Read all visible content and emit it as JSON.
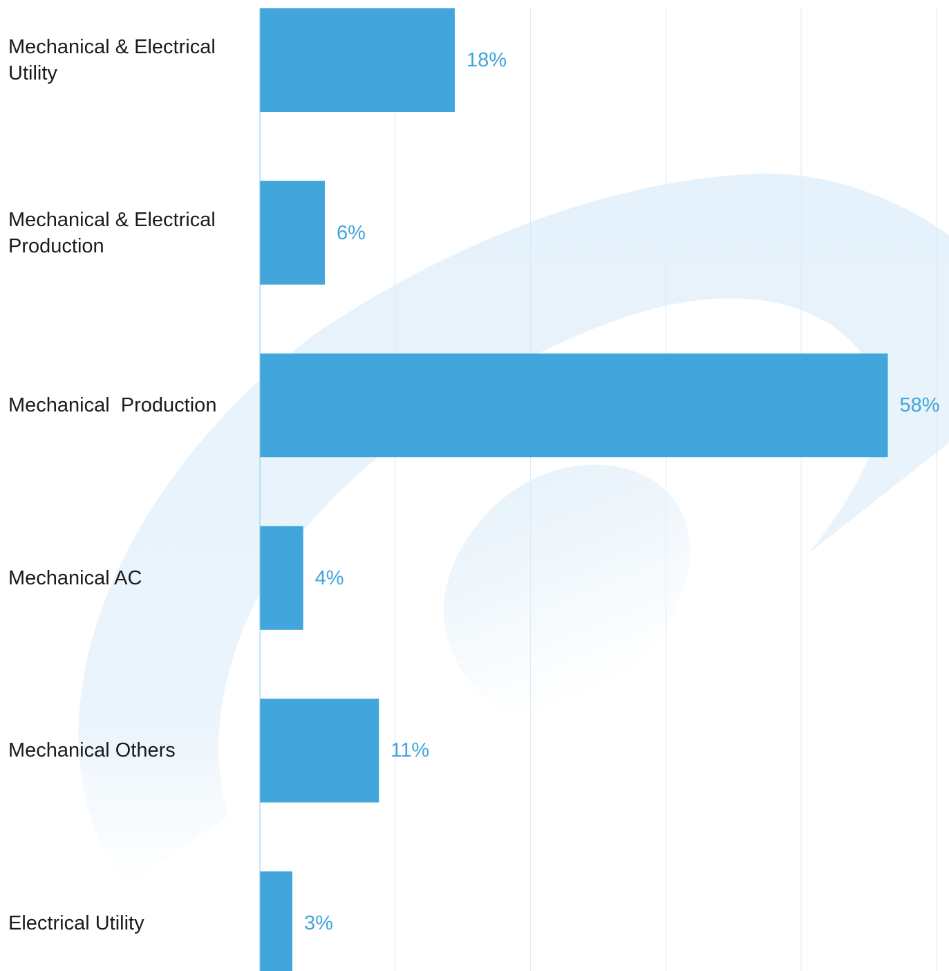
{
  "colors": {
    "bar": "#42a5dc",
    "value_label": "#42a5dc",
    "category_label": "#1b1b1b",
    "gridline": "#d9ebf7",
    "axis": "#8cc8ea",
    "background_swirl": "#e6f2fb"
  },
  "chart_data": {
    "type": "bar",
    "orientation": "horizontal",
    "title": "",
    "xlabel": "",
    "ylabel": "",
    "categories": [
      "Mechanical & Electrical Utility",
      "Mechanical & Electrical Production",
      "Mechanical  Production",
      "Mechanical AC",
      "Mechanical Others",
      "Electrical Utility"
    ],
    "values": [
      18,
      6,
      58,
      4,
      11,
      3
    ],
    "value_labels": [
      "18%",
      "6%",
      "58%",
      "4%",
      "11%",
      "3%"
    ],
    "xlim": [
      0,
      62.5
    ],
    "grid": true,
    "legend": "none"
  }
}
